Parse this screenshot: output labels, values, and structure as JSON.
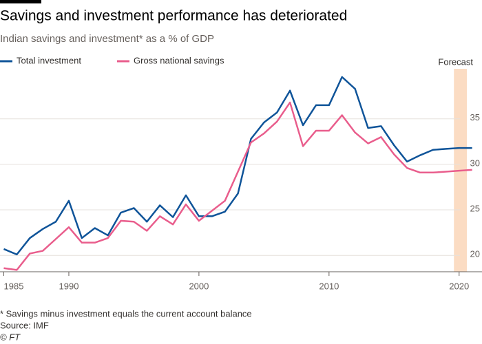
{
  "title": "Savings and investment performance has deteriorated",
  "chart_data": {
    "type": "line",
    "subtitle": "Indian savings and investment* as a % of GDP",
    "annotation": "Forecast",
    "forecast_span": [
      2019.6,
      2020.6
    ],
    "x": [
      1985,
      1986,
      1987,
      1988,
      1989,
      1990,
      1991,
      1992,
      1993,
      1994,
      1995,
      1996,
      1997,
      1998,
      1999,
      2000,
      2001,
      2002,
      2003,
      2004,
      2005,
      2006,
      2007,
      2008,
      2009,
      2010,
      2011,
      2012,
      2013,
      2014,
      2015,
      2016,
      2017,
      2018,
      2019,
      2020,
      2021
    ],
    "series": [
      {
        "name": "Total investment",
        "color": "#0f5499",
        "values": [
          20.7,
          20.1,
          21.9,
          22.9,
          23.7,
          26.0,
          21.9,
          23.0,
          22.2,
          24.7,
          25.2,
          23.7,
          25.5,
          24.2,
          26.6,
          24.3,
          24.3,
          24.8,
          26.8,
          32.8,
          34.6,
          35.7,
          38.1,
          34.3,
          36.5,
          36.5,
          39.6,
          38.3,
          34.0,
          34.2,
          32.1,
          30.3,
          31.0,
          31.6,
          31.7,
          31.8,
          31.8
        ]
      },
      {
        "name": "Gross national savings",
        "color": "#e95d8c",
        "values": [
          18.6,
          18.4,
          20.2,
          20.5,
          21.8,
          23.1,
          21.4,
          21.4,
          21.9,
          23.8,
          23.7,
          22.7,
          24.3,
          23.4,
          25.6,
          23.8,
          24.9,
          26.0,
          29.2,
          32.4,
          33.4,
          34.7,
          36.8,
          32.0,
          33.7,
          33.7,
          35.4,
          33.5,
          32.3,
          33.0,
          31.1,
          29.6,
          29.1,
          29.1,
          29.2,
          29.3,
          29.4
        ]
      }
    ],
    "xlim": [
      1985,
      2021.6
    ],
    "xticks": [
      1985,
      1990,
      2000,
      2010,
      2020
    ],
    "ylim": [
      18.2,
      40.5
    ],
    "yticks": [
      20,
      25,
      30,
      35
    ],
    "grid": true,
    "footnote": "* Savings minus investment equals the current account balance",
    "source": "Source: IMF",
    "credit": "© FT"
  }
}
